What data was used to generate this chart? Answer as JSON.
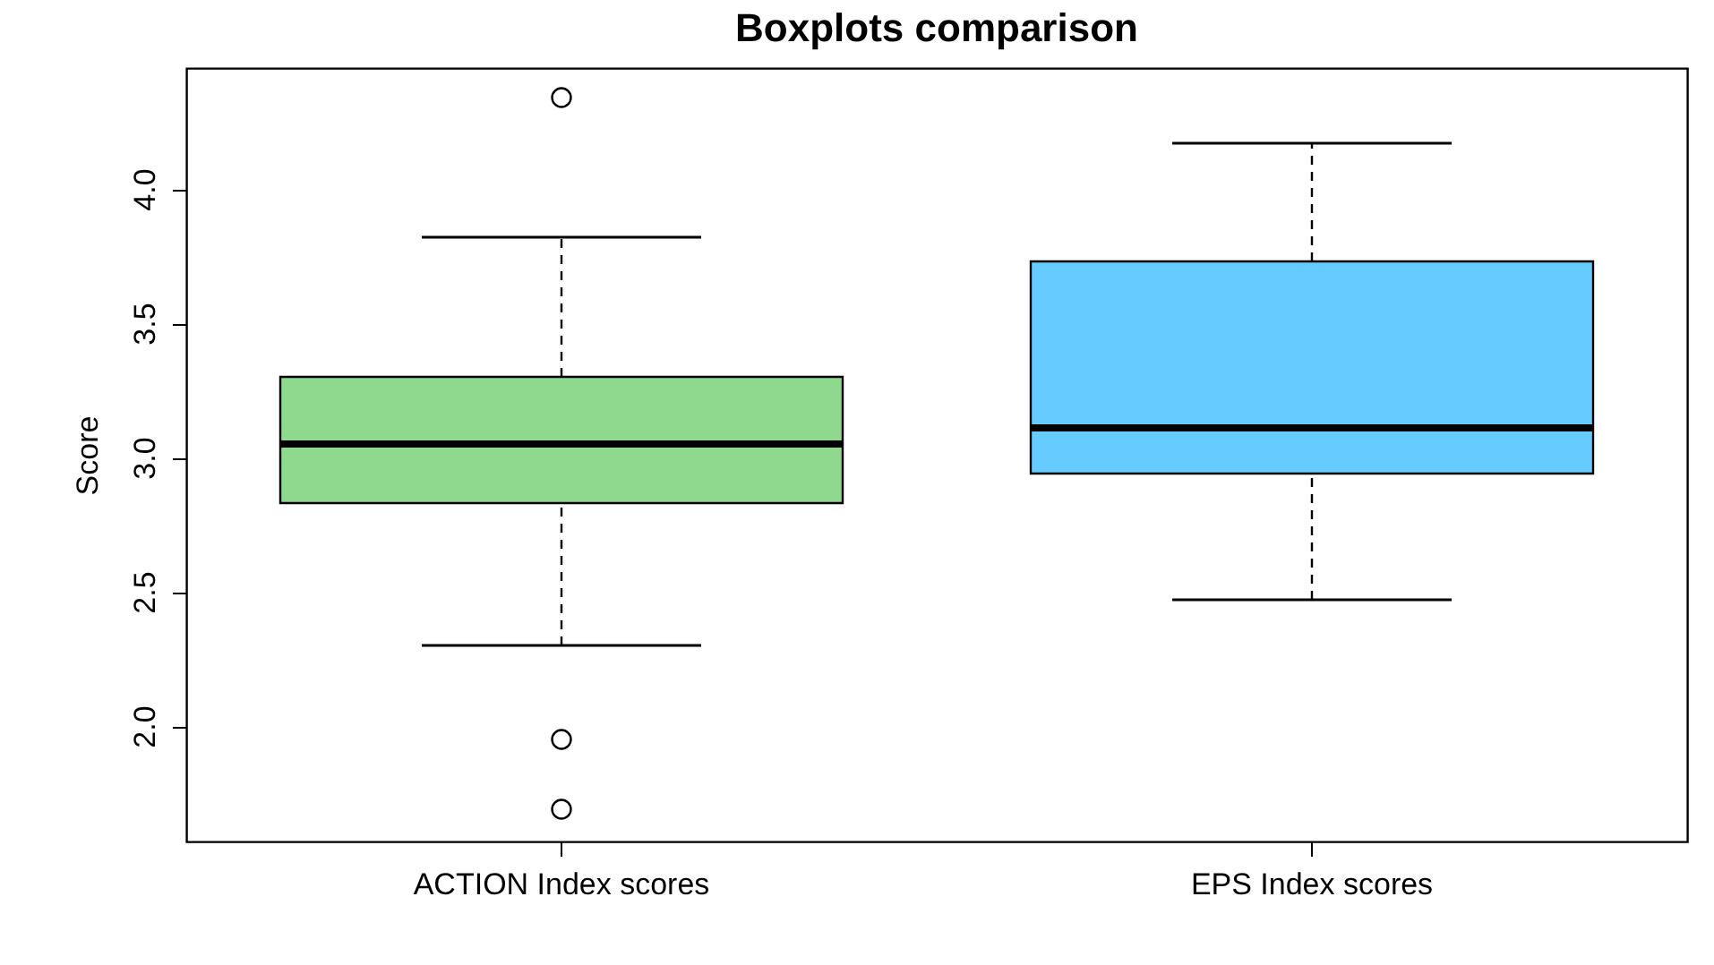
{
  "chart_data": {
    "type": "box",
    "title": "Boxplots comparison",
    "ylabel": "Score",
    "categories": [
      "ACTION Index scores",
      "EPS Index scores"
    ],
    "boxes": [
      {
        "low": 2.3,
        "q1": 2.83,
        "median": 3.05,
        "q3": 3.3,
        "high": 3.82,
        "outliers": [
          4.34,
          1.95,
          1.69
        ]
      },
      {
        "low": 2.47,
        "q1": 2.94,
        "median": 3.11,
        "q3": 3.73,
        "high": 4.17
      }
    ],
    "colors": [
      "#8fd98f",
      "#66ccff"
    ],
    "ylim": [
      1.57,
      4.45
    ],
    "yticks": [
      {
        "value": 2,
        "label": "2.0"
      },
      {
        "value": 2.5,
        "label": "2.5"
      },
      {
        "value": 3,
        "label": "3.0"
      },
      {
        "value": 3.5,
        "label": "3.5"
      },
      {
        "value": 4,
        "label": "4.0"
      }
    ],
    "grid": false,
    "legend": false,
    "line_style": "dashed"
  }
}
